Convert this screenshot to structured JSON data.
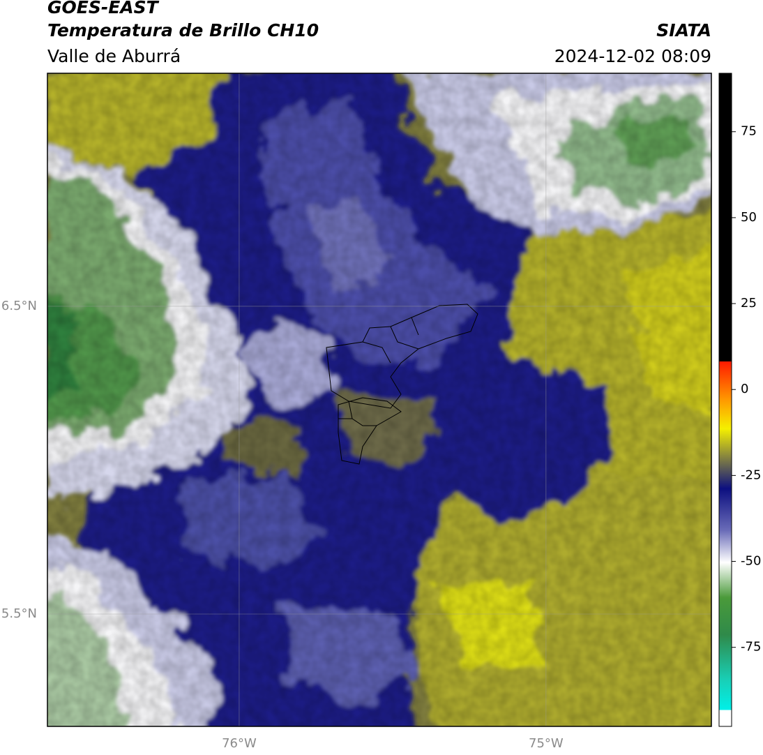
{
  "header": {
    "title": "GOES-EAST",
    "subtitle": "Temperatura de Brillo CH10",
    "region": "Valle de Aburrá",
    "source": "SIATA",
    "datetime": "2024-12-02 08:09"
  },
  "map": {
    "lonlim": [
      -76.625,
      -74.461
    ],
    "latlim": [
      5.135,
      7.257
    ],
    "lon_ticks": [
      {
        "value": -76,
        "label": "76°W"
      },
      {
        "value": -75,
        "label": "75°W"
      }
    ],
    "lat_ticks": [
      {
        "value": 6.5,
        "label": "6.5°N"
      },
      {
        "value": 5.5,
        "label": "5.5°N"
      }
    ]
  },
  "colorbar": {
    "lim": [
      -98,
      92
    ],
    "ticks": [
      75,
      50,
      25,
      0,
      -25,
      -50,
      -75
    ]
  }
}
